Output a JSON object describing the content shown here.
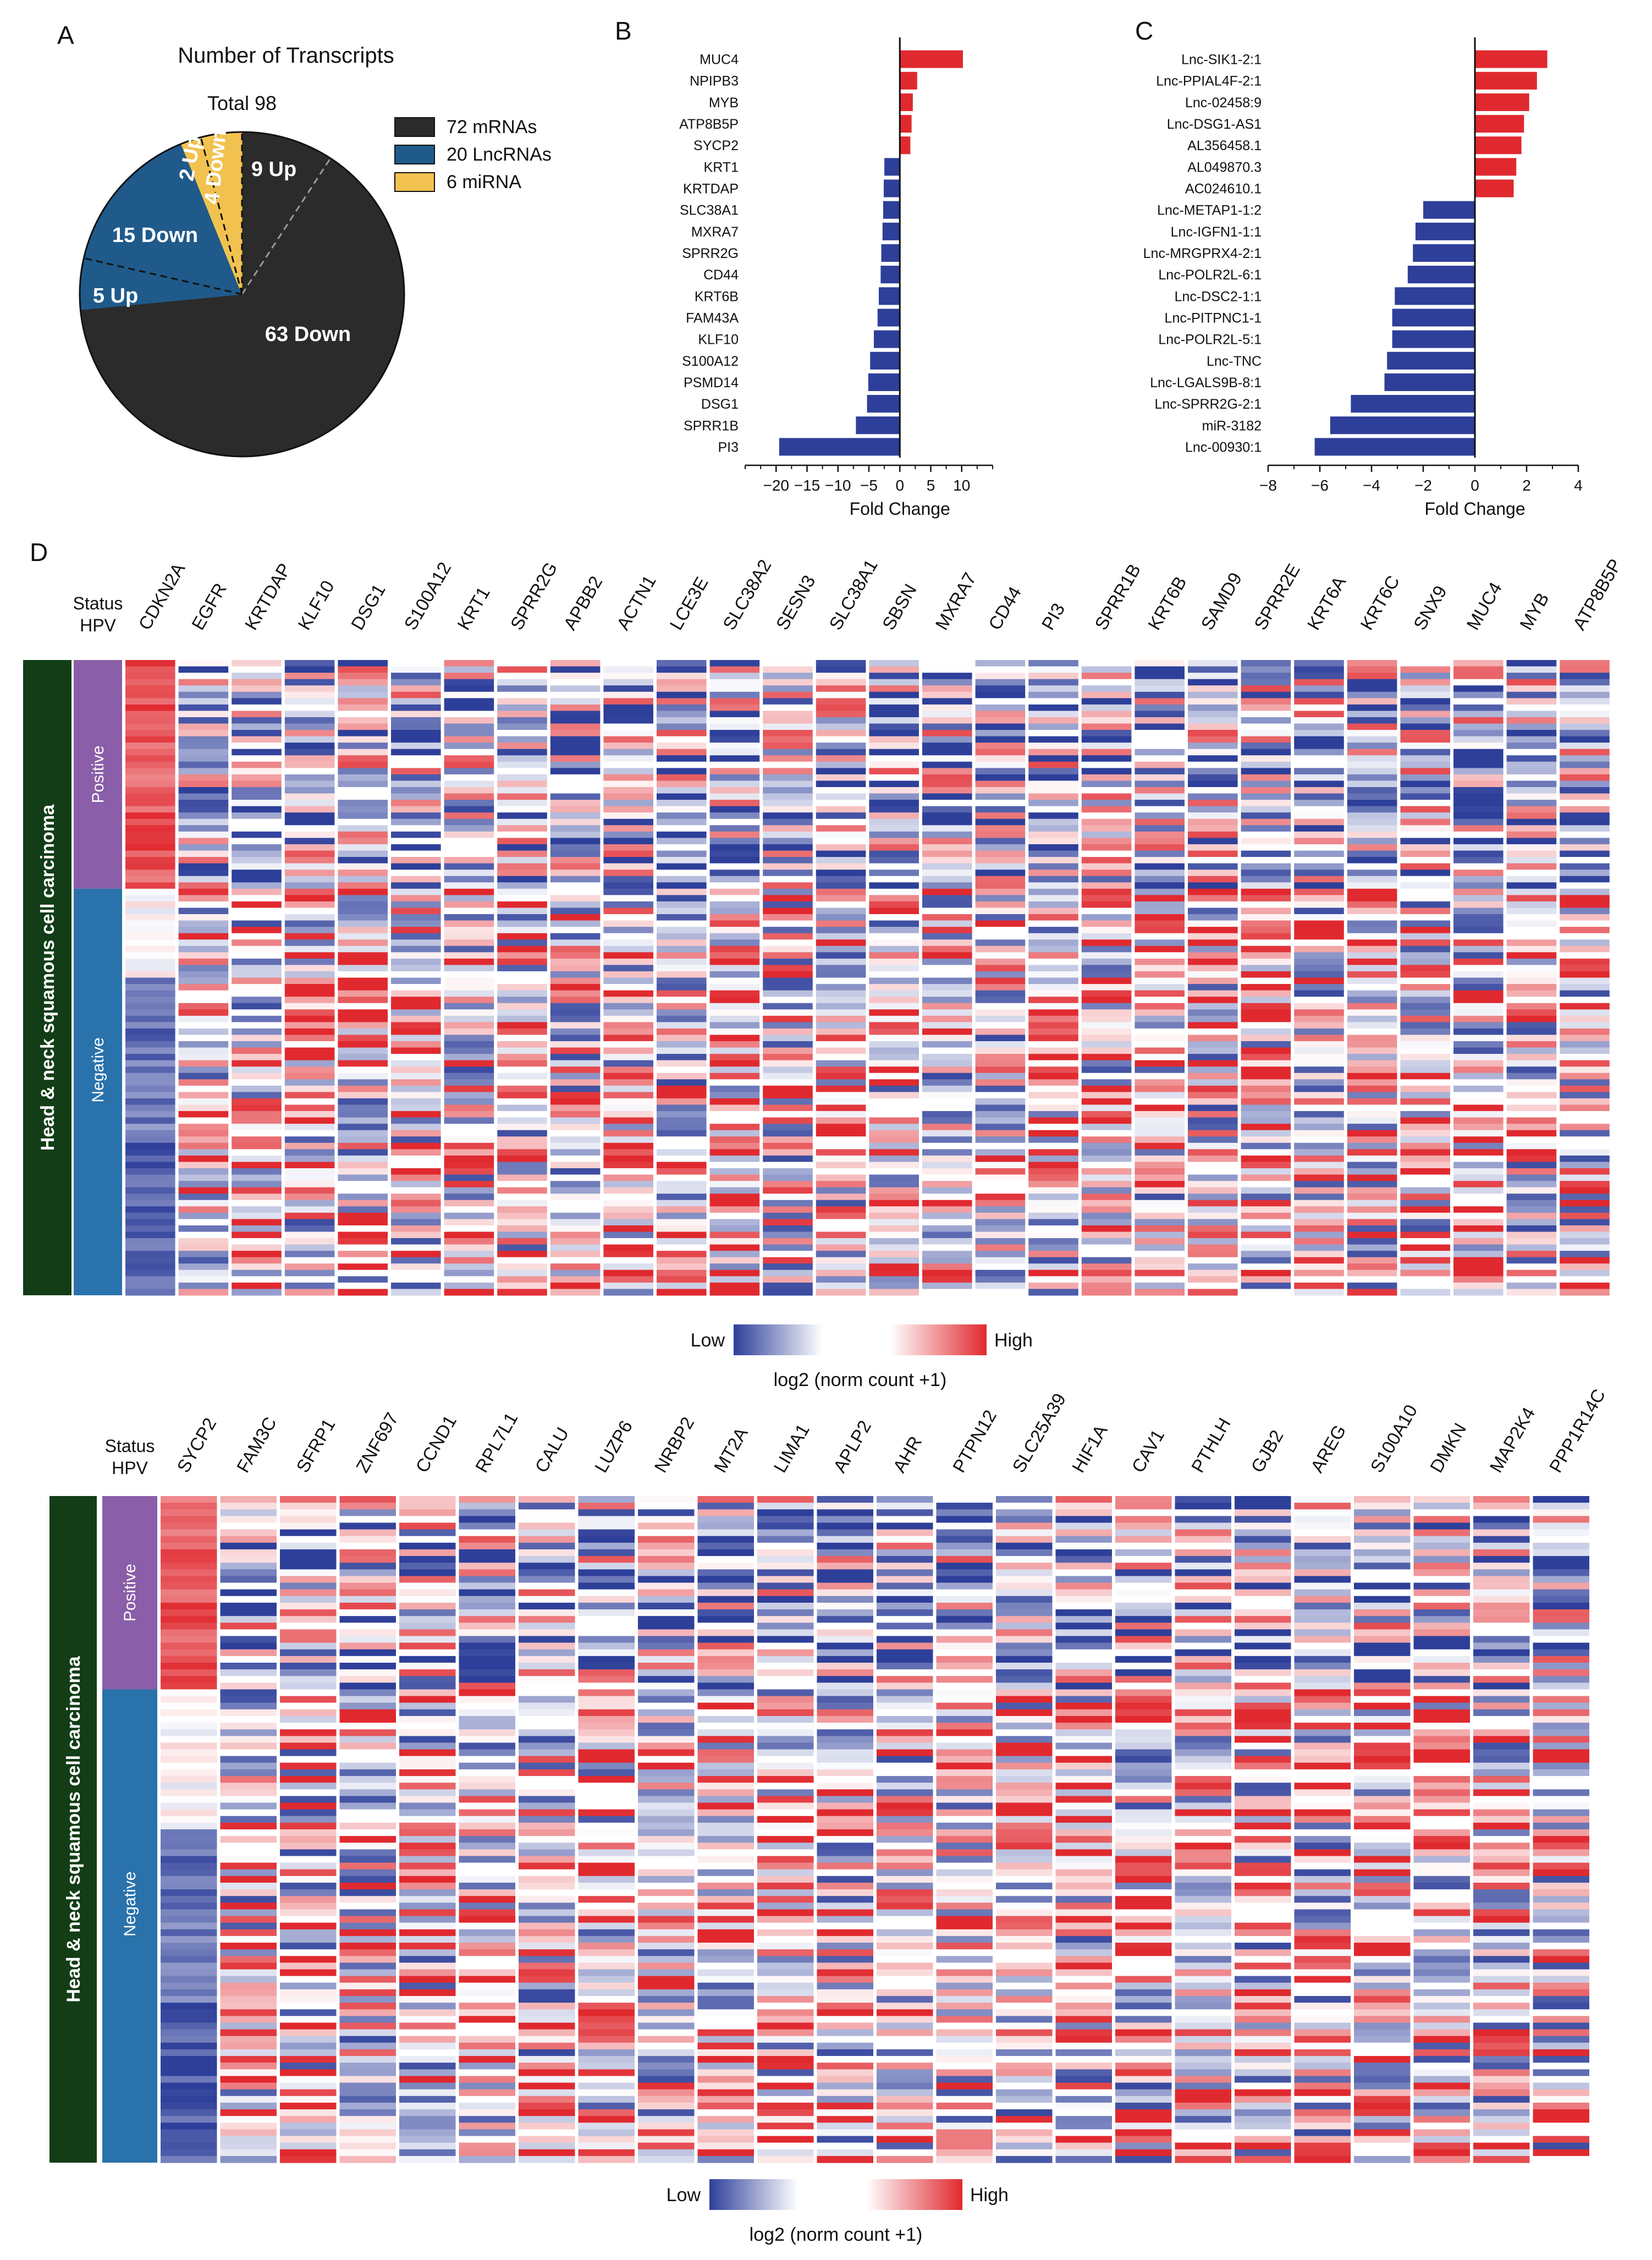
{
  "figure": {
    "panel_labels": [
      "A",
      "B",
      "C",
      "D"
    ]
  },
  "chart_data": [
    {
      "id": "A",
      "type": "pie",
      "title": "Number of Transcripts",
      "subtitle": "Total 98",
      "slices": [
        {
          "label": "9 Up",
          "value": 9,
          "group": "mRNA"
        },
        {
          "label": "63 Down",
          "value": 63,
          "group": "mRNA"
        },
        {
          "label": "5 Up",
          "value": 5,
          "group": "LncRNA"
        },
        {
          "label": "15 Down",
          "value": 15,
          "group": "LncRNA"
        },
        {
          "label": "2 Up",
          "value": 2,
          "group": "miRNA"
        },
        {
          "label": "4 Down",
          "value": 4,
          "group": "miRNA"
        }
      ],
      "legend": [
        {
          "label": "72 mRNAs",
          "color": "#2b2b2b"
        },
        {
          "label": "20 LncRNAs",
          "color": "#1f5a8a"
        },
        {
          "label": "6 miRNA",
          "color": "#f2c250"
        }
      ],
      "colors": {
        "mRNA": "#2b2b2b",
        "LncRNA": "#1f5a8a",
        "miRNA": "#f2c250"
      }
    },
    {
      "id": "B",
      "type": "bar",
      "orientation": "horizontal",
      "categories": [
        "MUC4",
        "NPIPB3",
        "MYB",
        "ATP8B5P",
        "SYCP2",
        "KRT1",
        "KRTDAP",
        "SLC38A1",
        "MXRA7",
        "SPRR2G",
        "CD44",
        "KRT6B",
        "FAM43A",
        "KLF10",
        "S100A12",
        "PSMD14",
        "DSG1",
        "SPRR1B",
        "PI3"
      ],
      "values": [
        10.2,
        2.8,
        2.1,
        1.9,
        1.7,
        -2.5,
        -2.6,
        -2.7,
        -2.8,
        -3.0,
        -3.1,
        -3.4,
        -3.6,
        -4.2,
        -4.8,
        -5.1,
        -5.3,
        -7.1,
        -19.5
      ],
      "xlabel": "Fold Change",
      "xlim": [
        -25,
        15
      ],
      "xticks": [
        -20,
        -15,
        -10,
        -5,
        0,
        5,
        10
      ],
      "xtick_labels": [
        "−20",
        "−15",
        "−10",
        "−5",
        "0",
        "5",
        "10"
      ],
      "colors": {
        "positive": "#e0292f",
        "negative": "#2e3f9a"
      }
    },
    {
      "id": "C",
      "type": "bar",
      "orientation": "horizontal",
      "categories": [
        "Lnc-SIK1-2:1",
        "Lnc-PPIAL4F-2:1",
        "Lnc-02458:9",
        "Lnc-DSG1-AS1",
        "AL356458.1",
        "AL049870.3",
        "AC024610.1",
        "Lnc-METAP1-1:2",
        "Lnc-IGFN1-1:1",
        "Lnc-MRGPRX4-2:1",
        "Lnc-POLR2L-6:1",
        "Lnc-DSC2-1:1",
        "Lnc-PITPNC1-1",
        "Lnc-POLR2L-5:1",
        "Lnc-TNC",
        "Lnc-LGALS9B-8:1",
        "Lnc-SPRR2G-2:1",
        "miR-3182",
        "Lnc-00930:1"
      ],
      "values": [
        2.8,
        2.4,
        2.1,
        1.9,
        1.8,
        1.6,
        1.5,
        -2.0,
        -2.3,
        -2.4,
        -2.6,
        -3.1,
        -3.2,
        -3.2,
        -3.4,
        -3.5,
        -4.8,
        -5.6,
        -6.2
      ],
      "xlabel": "Fold Change",
      "xlim": [
        -8,
        4
      ],
      "xticks": [
        -8,
        -6,
        -4,
        -2,
        0,
        2,
        4
      ],
      "xtick_labels": [
        "−8",
        "−6",
        "−4",
        "−2",
        "0",
        "2",
        "4"
      ],
      "colors": {
        "positive": "#e0292f",
        "negative": "#2e3f9a"
      }
    },
    {
      "id": "D1",
      "type": "heatmap",
      "status_label": "Status",
      "hpv_label": "HPV",
      "side_label": "Head & neck squamous cell carcinoma",
      "groups": [
        "Positive",
        "Negative"
      ],
      "group_split": 0.36,
      "columns": [
        "CDKN2A",
        "EGFR",
        "KRTDAP",
        "KLF10",
        "DSG1",
        "S100A12",
        "KRT1",
        "SPRR2G",
        "APBB2",
        "ACTN1",
        "LCE3E",
        "SLC38A2",
        "SESN3",
        "SLC38A1",
        "SBSN",
        "MXRA7",
        "CD44",
        "PI3",
        "SPRR1B",
        "KRT6B",
        "SAMD9",
        "SPRR2E",
        "KRT6A",
        "KRT6C",
        "SNX9",
        "MUC4",
        "MYB",
        "ATP8B5P"
      ],
      "n_rows": 100,
      "colorbar": {
        "low": "Low",
        "high": "High",
        "label": "log2 (norm count +1)"
      }
    },
    {
      "id": "D2",
      "type": "heatmap",
      "status_label": "Status",
      "hpv_label": "HPV",
      "side_label": "Head & neck squamous cell carcinoma",
      "groups": [
        "Positive",
        "Negative"
      ],
      "group_split": 0.29,
      "columns": [
        "SYCP2",
        "FAM3C",
        "SFRP1",
        "ZNF697",
        "CCND1",
        "RPL7L1",
        "CALU",
        "LUZP6",
        "NRBP2",
        "MT2A",
        "LIMA1",
        "APLP2",
        "AHR",
        "PTPN12",
        "SLC25A39",
        "HIF1A",
        "CAV1",
        "PTHLH",
        "GJB2",
        "AREG",
        "S100A10",
        "DMKN",
        "MAP2K4",
        "PPP1R14C"
      ],
      "n_rows": 100,
      "colorbar": {
        "low": "Low",
        "high": "High",
        "label": "log2 (norm count +1)"
      }
    }
  ]
}
